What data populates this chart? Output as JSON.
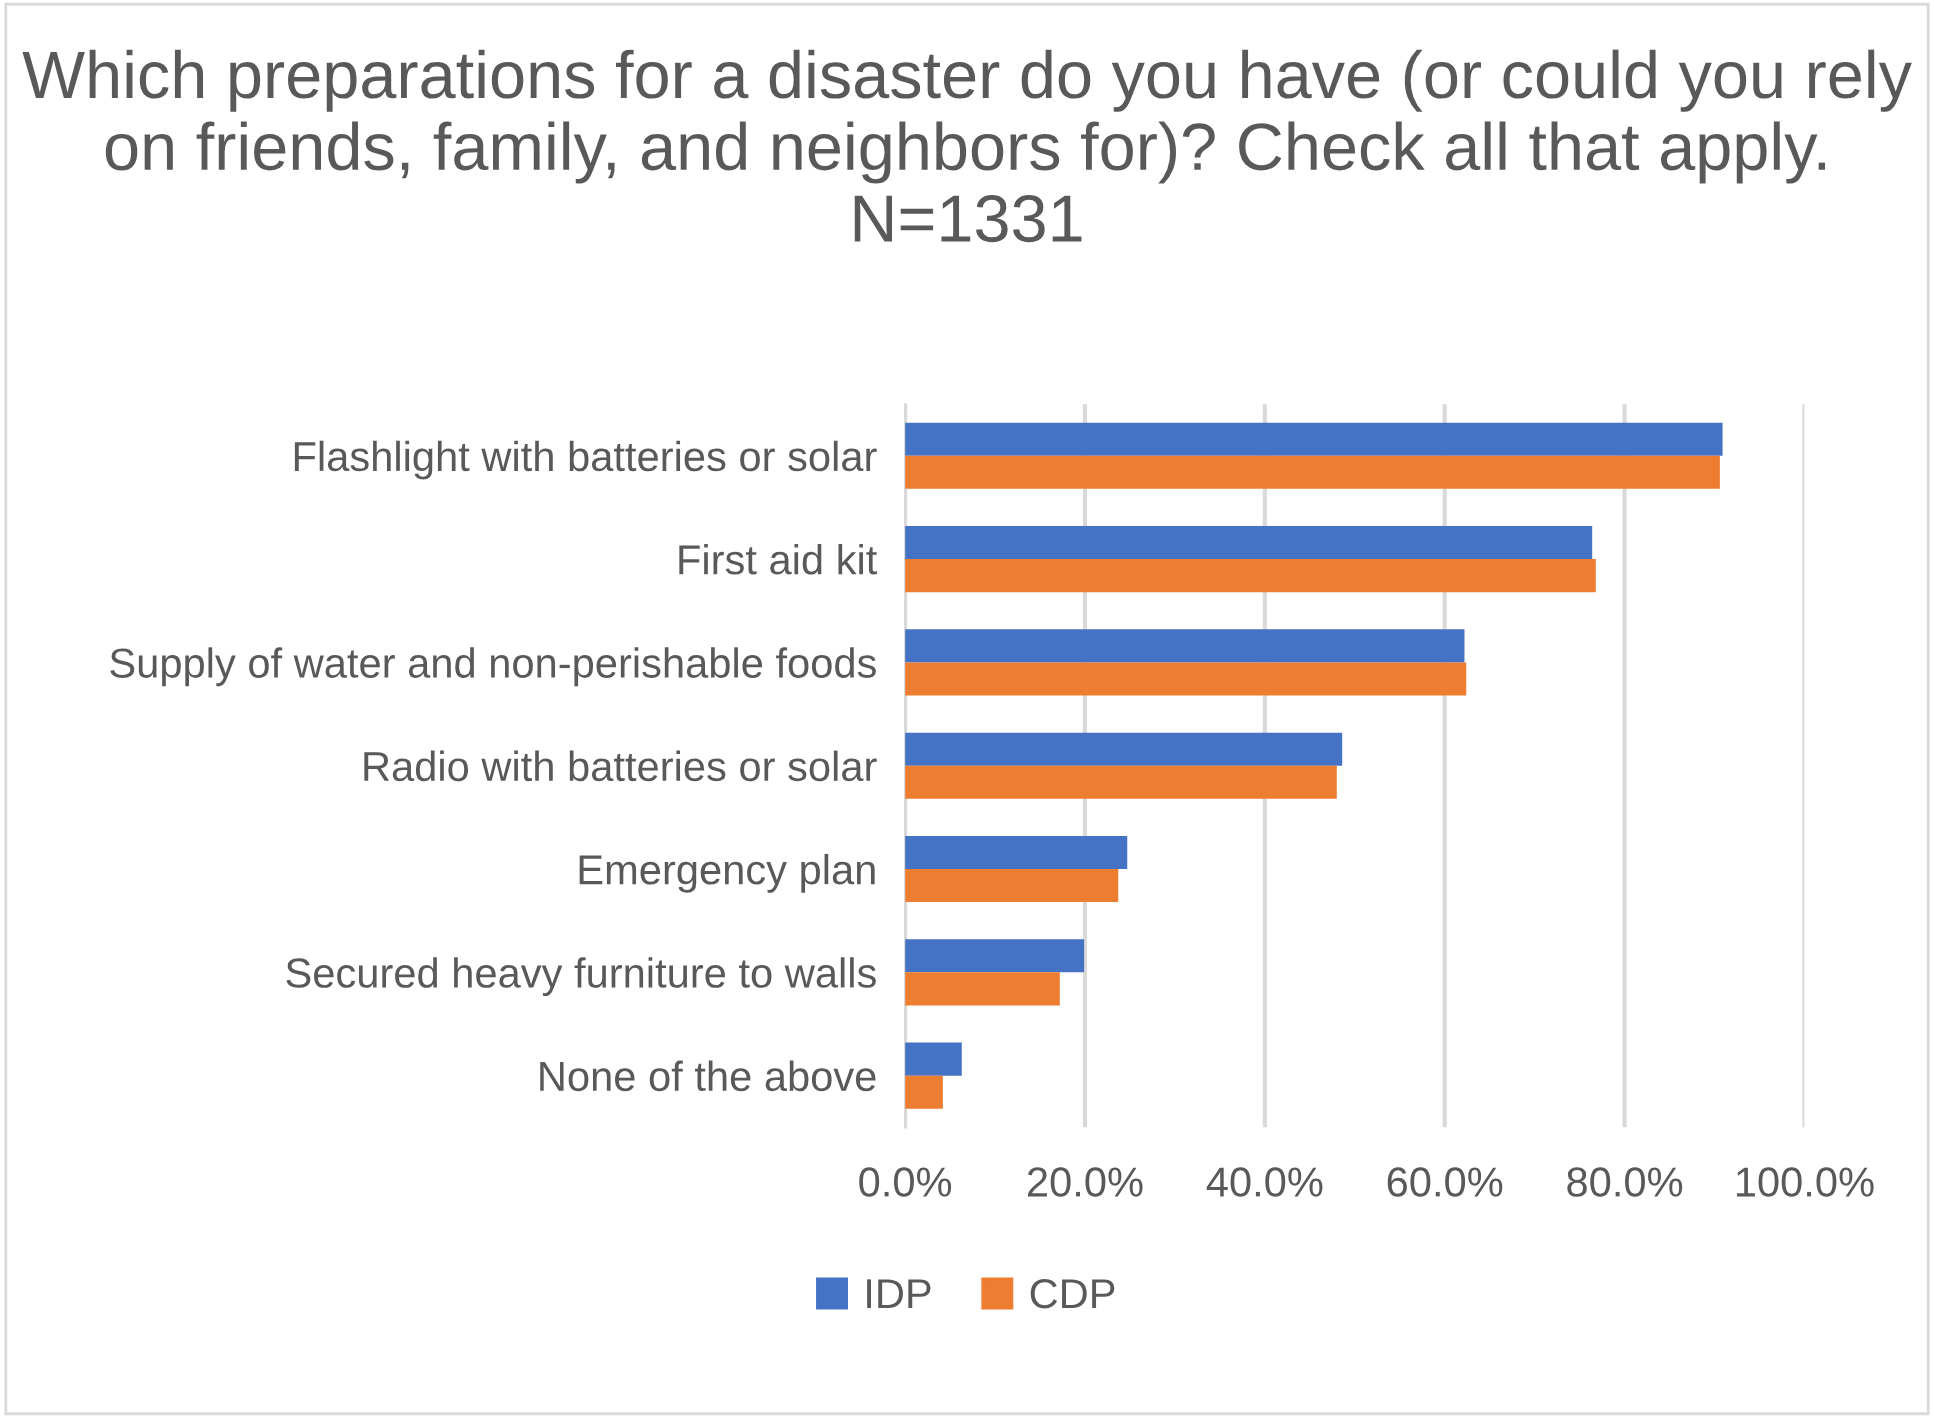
{
  "chart_data": {
    "type": "bar",
    "orientation": "horizontal",
    "title": "Which preparations for a disaster do you have (or could you rely on friends, family, and neighbors for)? Check all that apply. N=1331",
    "categories": [
      "Flashlight with batteries or solar",
      "First aid kit",
      "Supply of water and non-perishable foods",
      "Radio with batteries or solar",
      "Emergency plan",
      "Secured heavy furniture to walls",
      "None of the above"
    ],
    "series": [
      {
        "name": "IDP",
        "color": "#4472c4",
        "values": [
          90.9,
          76.4,
          62.2,
          48.6,
          24.7,
          19.9,
          6.3
        ]
      },
      {
        "name": "CDP",
        "color": "#ed7d31",
        "values": [
          90.6,
          76.8,
          62.4,
          48.0,
          23.7,
          17.2,
          4.2
        ]
      }
    ],
    "xlim": [
      0,
      100
    ],
    "xticks": [
      {
        "value": 0,
        "label": "0.0%"
      },
      {
        "value": 20,
        "label": "20.0%"
      },
      {
        "value": 40,
        "label": "40.0%"
      },
      {
        "value": 60,
        "label": "60.0%"
      },
      {
        "value": 80,
        "label": "80.0%"
      },
      {
        "value": 100,
        "label": "100.0%"
      }
    ],
    "grid": "x",
    "legend": "bottom"
  }
}
